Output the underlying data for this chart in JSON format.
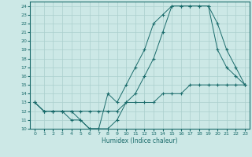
{
  "xlabel": "Humidex (Indice chaleur)",
  "bg_color": "#cce8e6",
  "grid_color": "#aacfcd",
  "line_color": "#1a6b6b",
  "xlim_min": -0.5,
  "xlim_max": 23.5,
  "ylim_min": 10,
  "ylim_max": 24.5,
  "xticks": [
    0,
    1,
    2,
    3,
    4,
    5,
    6,
    7,
    8,
    9,
    10,
    11,
    12,
    13,
    14,
    15,
    16,
    17,
    18,
    19,
    20,
    21,
    22,
    23
  ],
  "yticks": [
    10,
    11,
    12,
    13,
    14,
    15,
    16,
    17,
    18,
    19,
    20,
    21,
    22,
    23,
    24
  ],
  "line1_x": [
    0,
    1,
    2,
    3,
    4,
    5,
    6,
    7,
    8,
    9,
    10,
    11,
    12,
    13,
    14,
    15,
    16,
    17,
    18,
    19,
    20,
    21,
    22,
    23
  ],
  "line1_y": [
    13,
    12,
    12,
    12,
    12,
    11,
    10,
    10,
    10,
    11,
    13,
    14,
    16,
    18,
    21,
    24,
    24,
    24,
    24,
    24,
    19,
    17,
    16,
    15
  ],
  "line2_x": [
    0,
    1,
    2,
    3,
    4,
    5,
    6,
    7,
    8,
    9,
    10,
    11,
    12,
    13,
    14,
    15,
    16,
    17,
    18,
    19,
    20,
    21,
    22,
    23
  ],
  "line2_y": [
    13,
    12,
    12,
    12,
    11,
    11,
    10,
    10,
    14,
    13,
    15,
    17,
    19,
    22,
    23,
    24,
    24,
    24,
    24,
    24,
    22,
    19,
    17,
    15
  ],
  "line3_x": [
    0,
    1,
    2,
    3,
    4,
    5,
    6,
    7,
    8,
    9,
    10,
    11,
    12,
    13,
    14,
    15,
    16,
    17,
    18,
    19,
    20,
    21,
    22,
    23
  ],
  "line3_y": [
    13,
    12,
    12,
    12,
    12,
    12,
    12,
    12,
    12,
    12,
    13,
    13,
    13,
    13,
    14,
    14,
    14,
    15,
    15,
    15,
    15,
    15,
    15,
    15
  ]
}
